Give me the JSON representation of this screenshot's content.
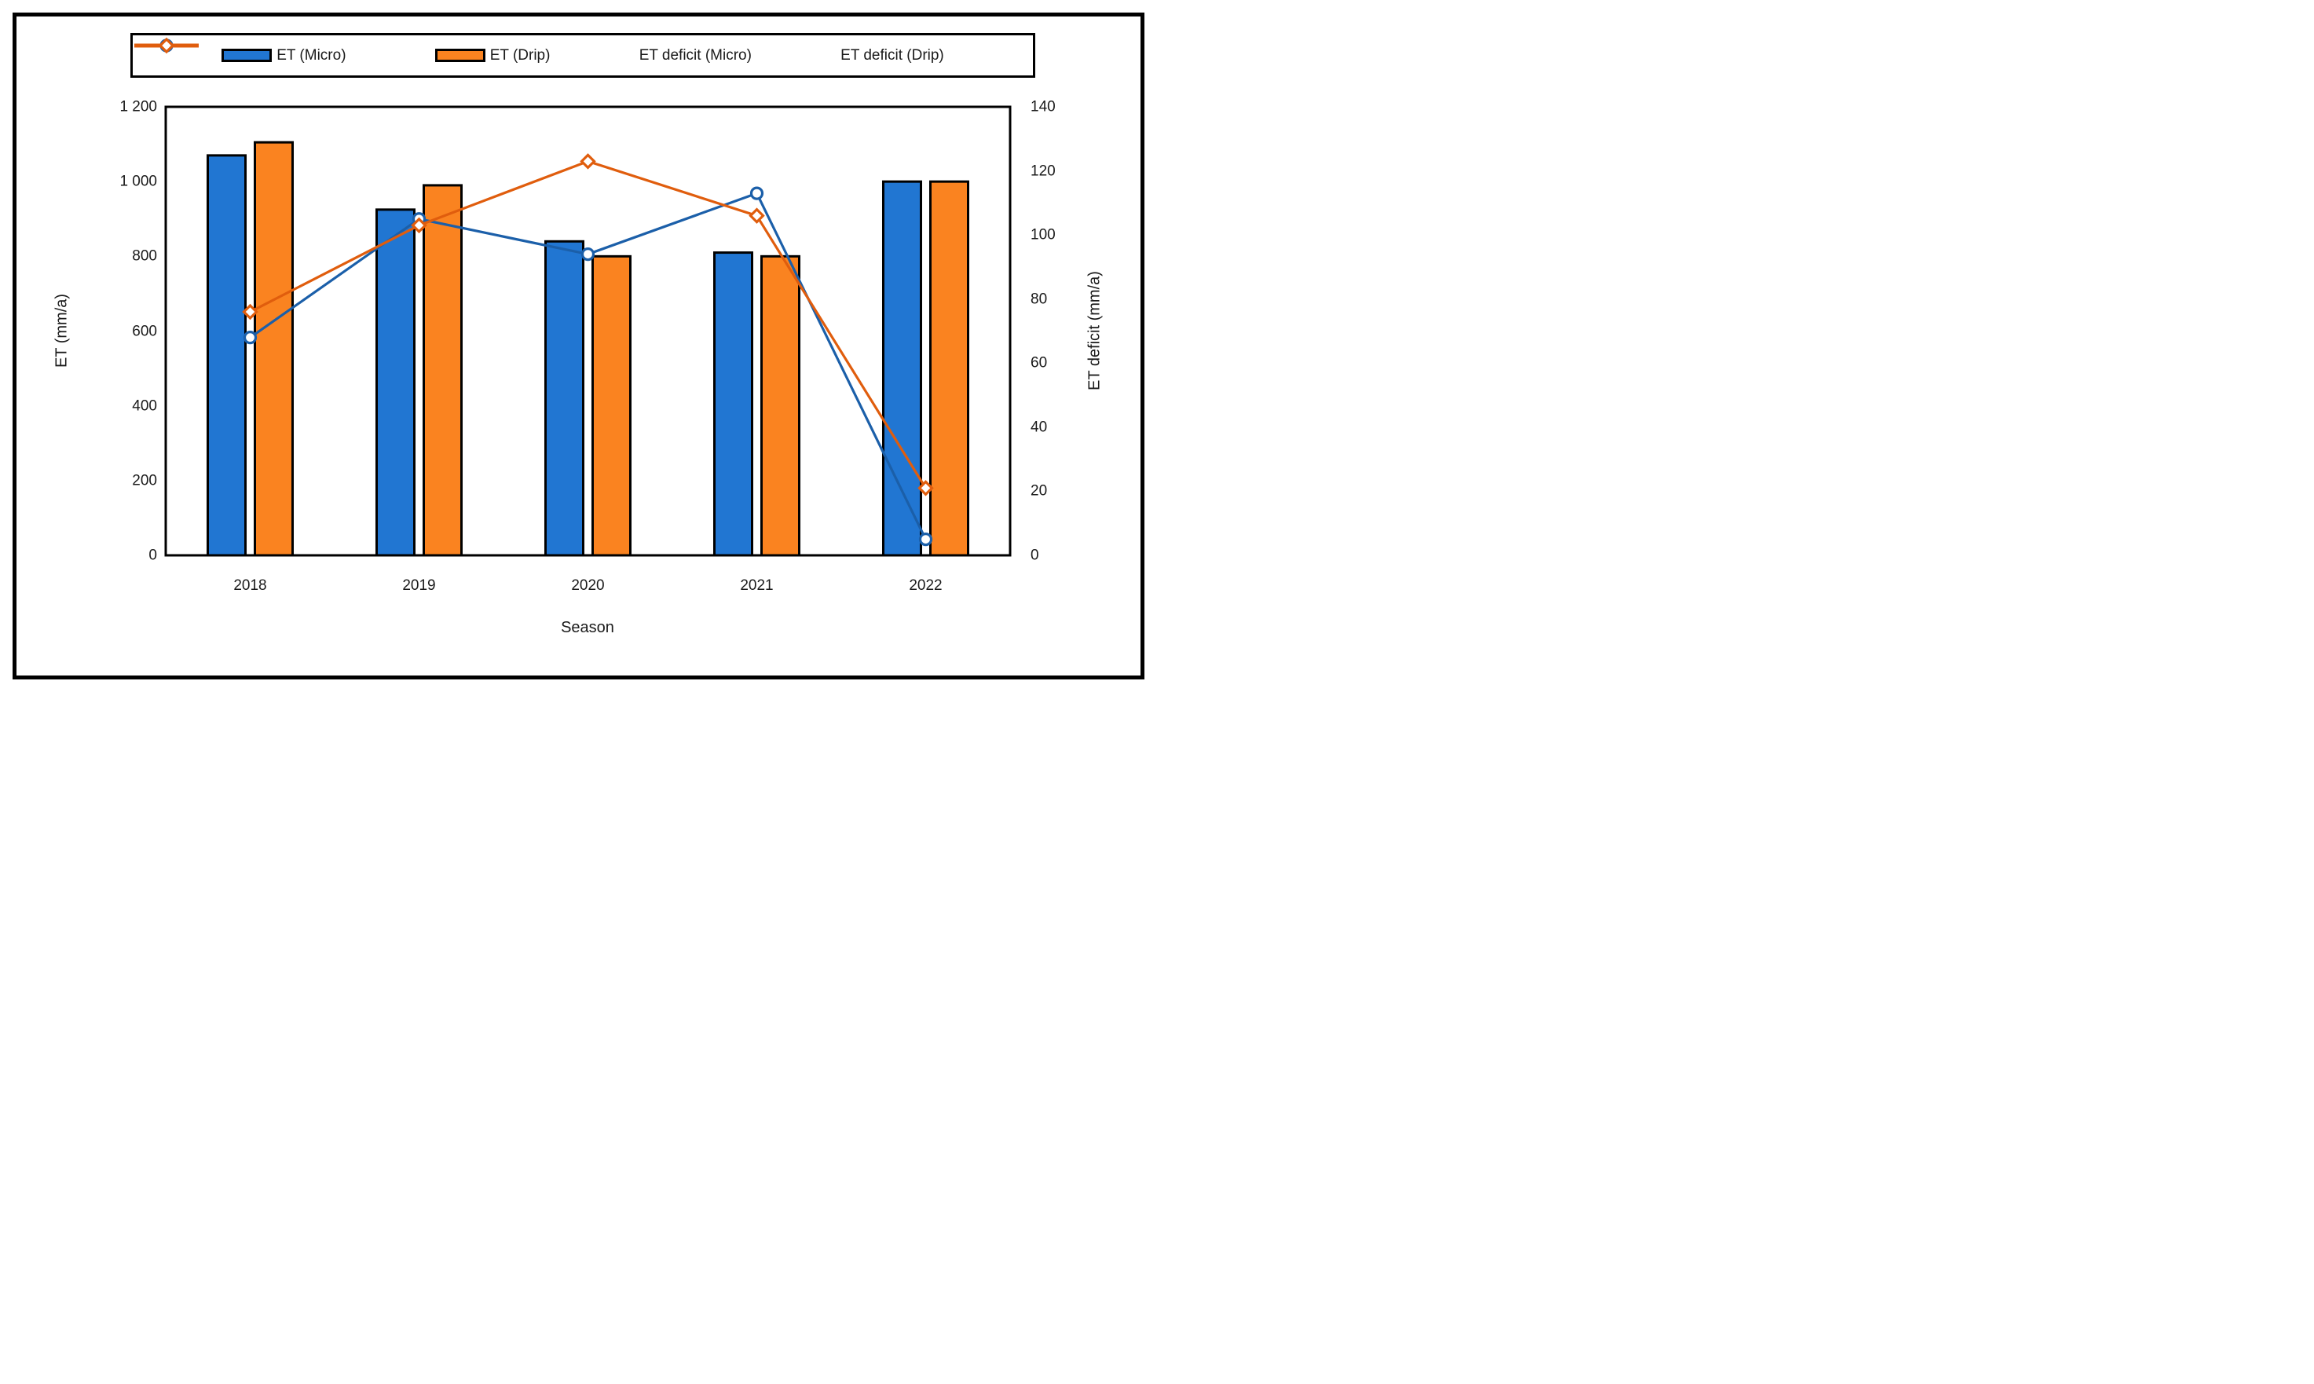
{
  "chart_data": {
    "type": "bar+line combo",
    "categories": [
      "2018",
      "2019",
      "2020",
      "2021",
      "2022"
    ],
    "bar_series": [
      {
        "name": "ET (Micro)",
        "axis": "left",
        "color": "#2176D2",
        "values": [
          1070,
          925,
          840,
          810,
          1000
        ]
      },
      {
        "name": "ET (Drip)",
        "axis": "left",
        "color": "#FA8320",
        "values": [
          1105,
          990,
          800,
          800,
          1000
        ]
      }
    ],
    "line_series": [
      {
        "name": "ET deficit (Micro)",
        "axis": "right",
        "color": "#1B5FA9",
        "marker": "circle",
        "values": [
          68,
          105,
          94,
          113,
          5
        ]
      },
      {
        "name": "ET deficit (Drip)",
        "axis": "right",
        "color": "#E05D0D",
        "marker": "diamond",
        "values": [
          76,
          103,
          123,
          106,
          21
        ]
      }
    ],
    "left_axis": {
      "title": "ET (mm/a)",
      "min": 0,
      "max": 1200,
      "tick_values": [
        0,
        200,
        400,
        600,
        800,
        1000,
        1200
      ],
      "tick_labels": [
        "0",
        "200",
        "400",
        "600",
        "800",
        "1 000",
        "1 200"
      ]
    },
    "right_axis": {
      "title": "ET deficit (mm/a)",
      "min": 0,
      "max": 140,
      "tick_values": [
        0,
        20,
        40,
        60,
        80,
        100,
        120,
        140
      ],
      "tick_labels": [
        "0",
        "20",
        "40",
        "60",
        "80",
        "100",
        "120",
        "140"
      ]
    },
    "x_axis": {
      "title": "Season"
    },
    "legend": {
      "position": "top",
      "items": [
        "ET (Micro)",
        "ET (Drip)",
        "ET deficit (Micro)",
        "ET deficit (Drip)"
      ]
    },
    "grid": false,
    "plot_border_color": "#000000",
    "background_color": "#ffffff"
  }
}
